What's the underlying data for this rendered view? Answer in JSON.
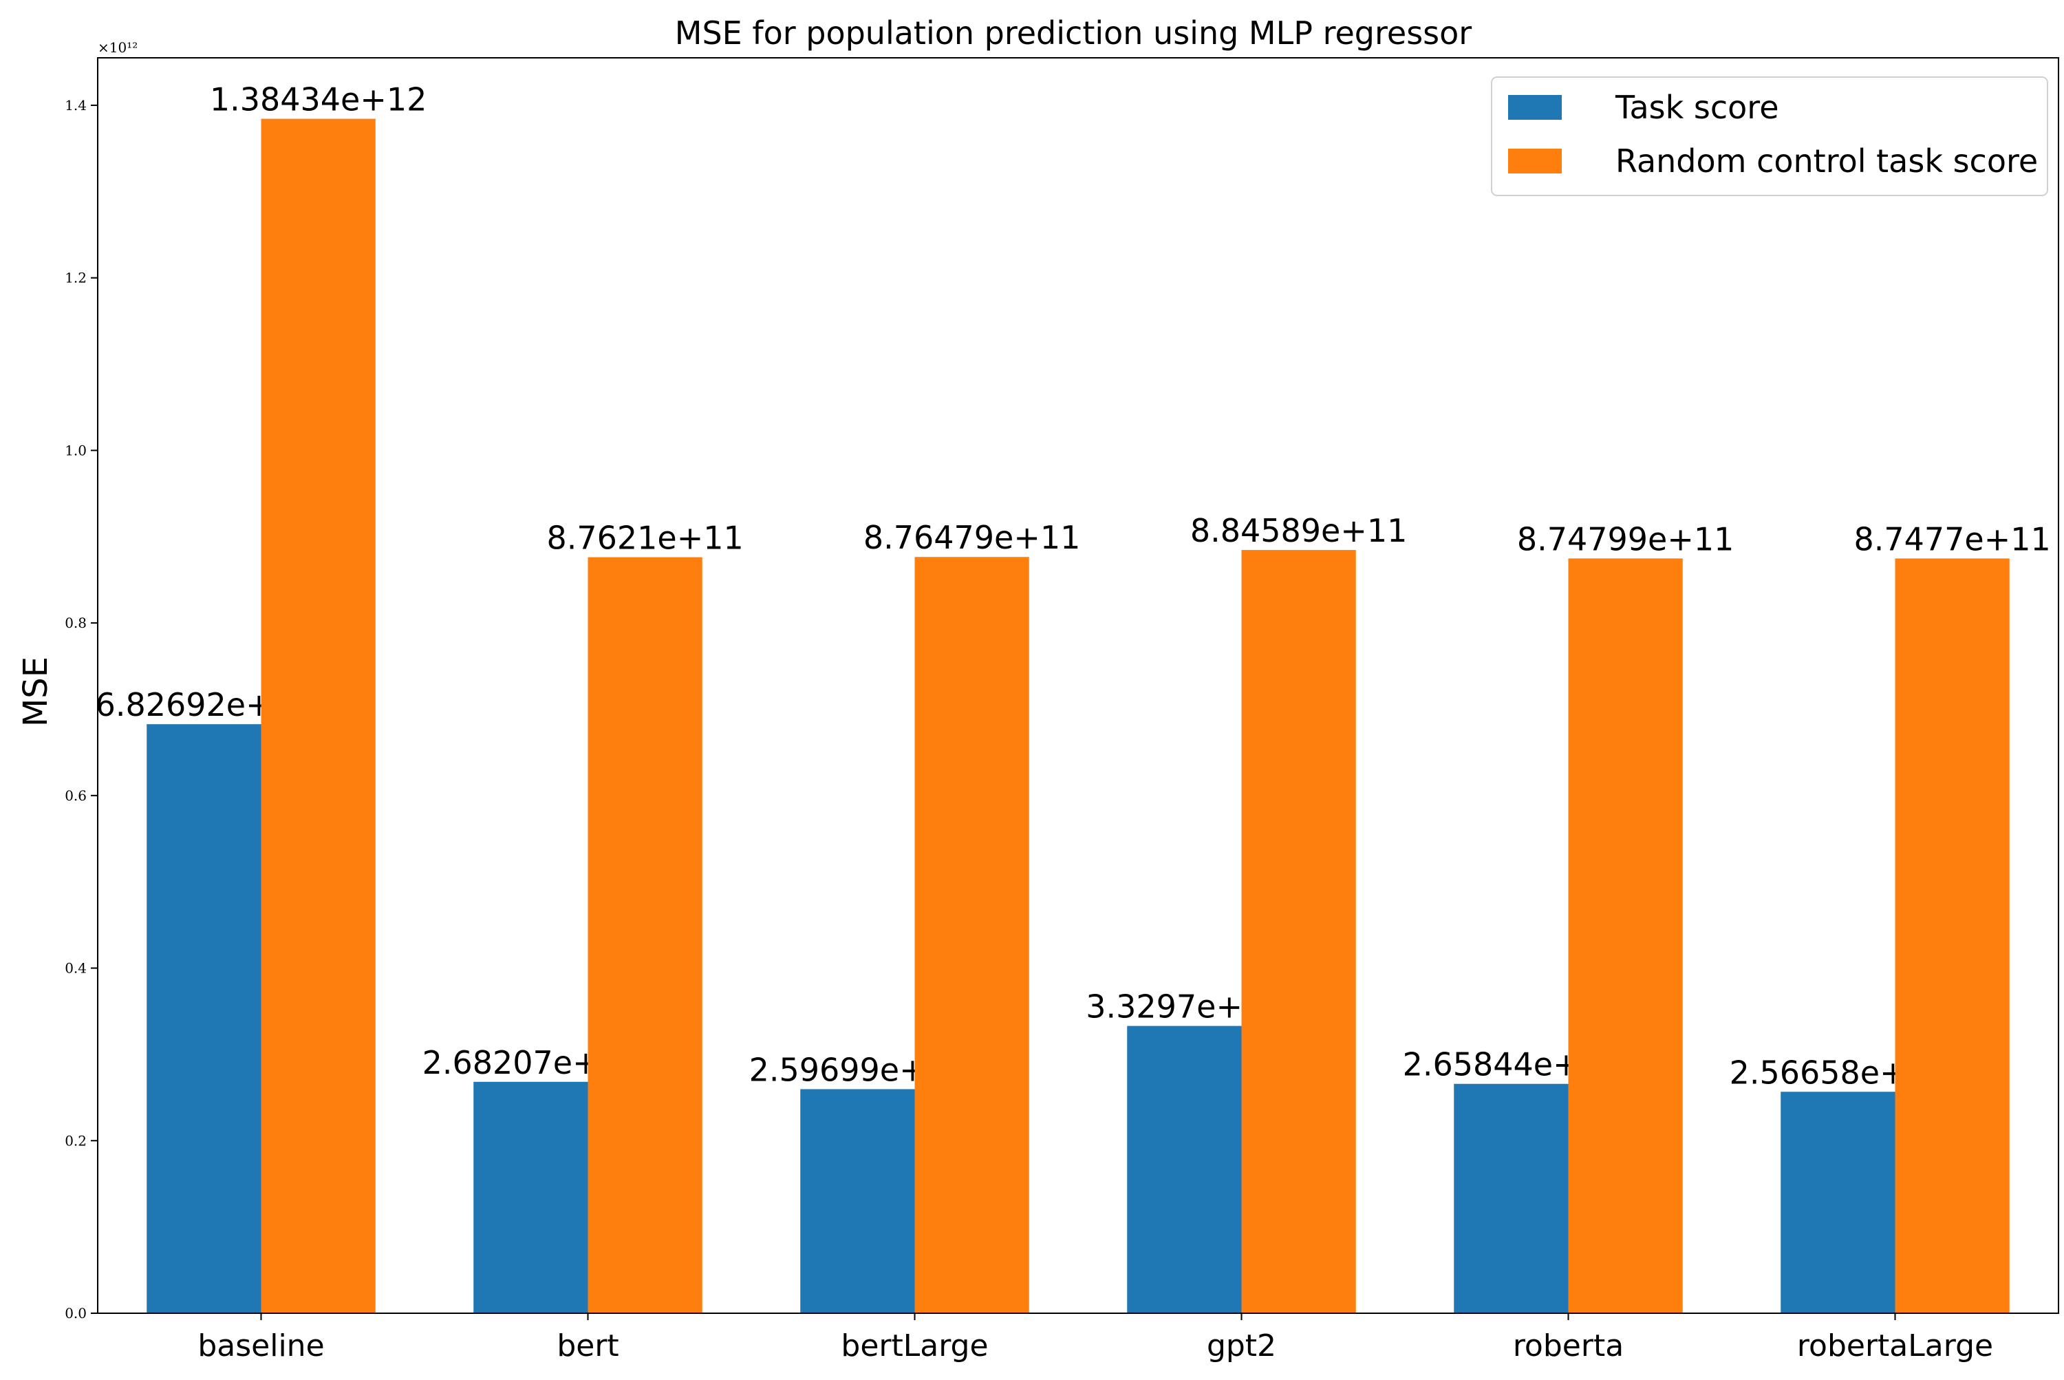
{
  "chart_data": {
    "type": "bar",
    "title": "MSE for population prediction using MLP regressor",
    "xlabel": "",
    "ylabel": "MSE",
    "y_multiplier_label": "×10¹²",
    "ylim": [
      0,
      1455000000000.0
    ],
    "yticks": [
      0,
      200000000000.0,
      400000000000.0,
      600000000000.0,
      800000000000.0,
      1000000000000.0,
      1200000000000.0,
      1400000000000.0
    ],
    "ytick_labels": [
      "0.0",
      "0.2",
      "0.4",
      "0.6",
      "0.8",
      "1.0",
      "1.2",
      "1.4"
    ],
    "grid": false,
    "legend_position": "top-right",
    "categories": [
      "baseline",
      "bert",
      "bertLarge",
      "gpt2",
      "roberta",
      "robertaLarge"
    ],
    "series": [
      {
        "name": "Task score",
        "color": "#1f77b4",
        "values": [
          682692000000,
          268207000000,
          259699000000,
          332970000000,
          265844000000,
          256658000000
        ],
        "labels": [
          "6.82692e+11",
          "2.68207e+11",
          "2.59699e+11",
          "3.3297e+11",
          "2.65844e+11",
          "2.56658e+11"
        ]
      },
      {
        "name": "Random control task score",
        "color": "#ff7f0e",
        "values": [
          1384340000000,
          876210000000,
          876479000000,
          884589000000,
          874799000000,
          874770000000
        ],
        "labels": [
          "1.38434e+12",
          "8.7621e+11",
          "8.76479e+11",
          "8.84589e+11",
          "8.74799e+11",
          "8.7477e+11"
        ]
      }
    ]
  }
}
